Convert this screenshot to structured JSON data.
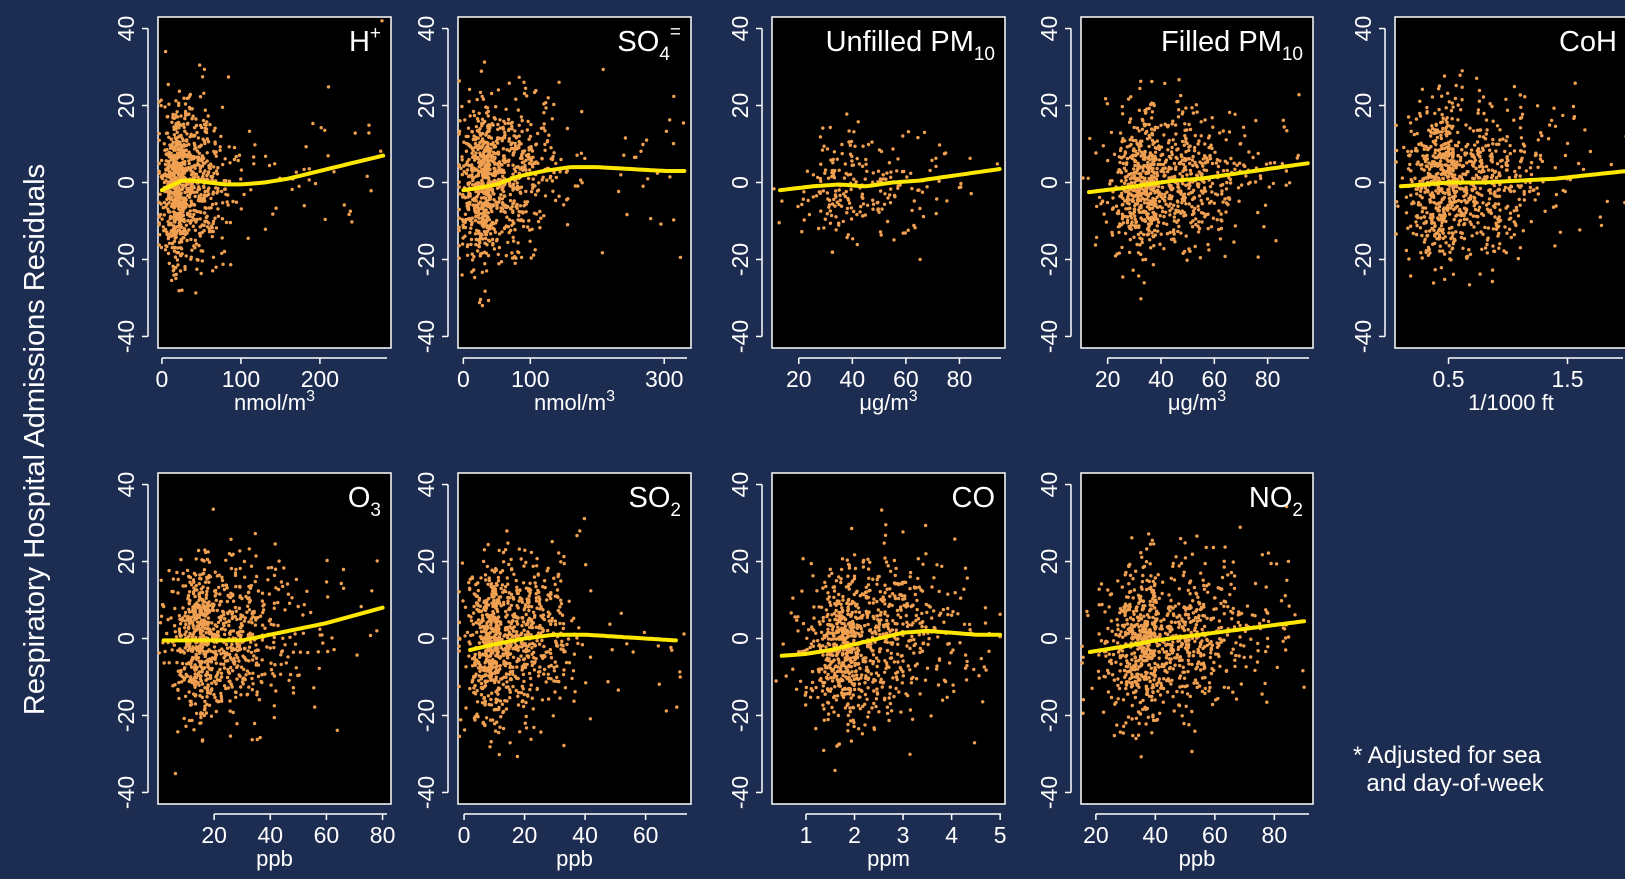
{
  "figure": {
    "ylabel": "Respiratory Hospital Admissions Residuals",
    "footnote_line1": "* Adjusted for sea",
    "footnote_line2": "  and day-of-week"
  },
  "colors": {
    "background": "#1d2d52",
    "panel": "#000000",
    "points": "#f0a050",
    "smooth": "#ffe800",
    "axis": "#ffffff"
  },
  "chart_data": [
    {
      "type": "scatter",
      "title_main": "H",
      "title_sup": "+",
      "title_sub": "",
      "xlabel_main": "nmol/m",
      "xlabel_sup": "3",
      "xlim": [
        -5,
        290
      ],
      "xticks": [
        0,
        100,
        200
      ],
      "xtick_labels": [
        "0",
        "100",
        "200"
      ],
      "ylim": [
        -43,
        43
      ],
      "yticks": [
        -40,
        -20,
        0,
        20,
        40
      ],
      "ytick_labels": [
        "-40",
        "-20",
        "0",
        "20",
        "40"
      ],
      "scatter": {
        "x_center": 25,
        "x_spread": 20,
        "x_max": 285,
        "y_spread": 10,
        "n": 950,
        "seed": 11
      },
      "smooth": {
        "x": [
          0,
          10,
          25,
          40,
          60,
          80,
          100,
          130,
          160,
          200,
          240,
          280
        ],
        "y": [
          -2,
          -1,
          0.5,
          0.5,
          0,
          -0.5,
          -0.5,
          0,
          1,
          3,
          5,
          7
        ]
      }
    },
    {
      "type": "scatter",
      "title_main": "SO",
      "title_sup": "=",
      "title_sub": "4",
      "xlabel_main": "nmol/m",
      "xlabel_sup": "3",
      "xlim": [
        -8,
        340
      ],
      "xticks": [
        0,
        100,
        300
      ],
      "xtick_labels": [
        "0",
        "100",
        "300"
      ],
      "ylim": [
        -43,
        43
      ],
      "yticks": [
        -40,
        -20,
        0,
        20,
        40
      ],
      "ytick_labels": [
        "-40",
        "-20",
        "0",
        "20",
        "40"
      ],
      "scatter": {
        "x_center": 40,
        "x_spread": 35,
        "x_max": 330,
        "y_spread": 10,
        "n": 950,
        "seed": 23
      },
      "smooth": {
        "x": [
          0,
          20,
          50,
          80,
          120,
          160,
          200,
          250,
          300,
          330
        ],
        "y": [
          -2,
          -1.5,
          -0.5,
          1.5,
          3,
          4,
          4,
          3.5,
          3,
          3
        ]
      }
    },
    {
      "type": "scatter",
      "title_main": "Unfilled PM",
      "title_sup": "",
      "title_sub": "10",
      "xlabel_main": "μg/m",
      "xlabel_sup": "3",
      "xlim": [
        10,
        97
      ],
      "xticks": [
        20,
        40,
        60,
        80
      ],
      "xtick_labels": [
        "20",
        "40",
        "60",
        "80"
      ],
      "ylim": [
        -43,
        43
      ],
      "yticks": [
        -40,
        -20,
        0,
        20,
        40
      ],
      "ytick_labels": [
        "-40",
        "-20",
        "0",
        "20",
        "40"
      ],
      "scatter": {
        "x_center": 40,
        "x_spread": 15,
        "x_max": 95,
        "y_spread": 7,
        "n": 230,
        "seed": 37
      },
      "smooth": {
        "x": [
          13,
          25,
          35,
          45,
          55,
          65,
          75,
          85,
          95
        ],
        "y": [
          -2,
          -1,
          -0.5,
          -1,
          0,
          0.5,
          1.5,
          2.5,
          3.5
        ]
      }
    },
    {
      "type": "scatter",
      "title_main": "Filled PM",
      "title_sup": "",
      "title_sub": "10",
      "xlabel_main": "μg/m",
      "xlabel_sup": "3",
      "xlim": [
        10,
        97
      ],
      "xticks": [
        20,
        40,
        60,
        80
      ],
      "xtick_labels": [
        "20",
        "40",
        "60",
        "80"
      ],
      "ylim": [
        -43,
        43
      ],
      "yticks": [
        -40,
        -20,
        0,
        20,
        40
      ],
      "ytick_labels": [
        "-40",
        "-20",
        "0",
        "20",
        "40"
      ],
      "scatter": {
        "x_center": 38,
        "x_spread": 13,
        "x_max": 95,
        "y_spread": 9,
        "n": 950,
        "seed": 41
      },
      "smooth": {
        "x": [
          13,
          25,
          35,
          45,
          55,
          65,
          75,
          85,
          95
        ],
        "y": [
          -2.5,
          -1.5,
          -0.5,
          0.5,
          1,
          2,
          3,
          4,
          5
        ]
      }
    },
    {
      "type": "scatter",
      "title_main": "CoH",
      "title_sup": "",
      "title_sub": "",
      "xlabel_main": "1/1000 ft",
      "xlabel_sup": "",
      "xlim": [
        0.05,
        2.0
      ],
      "xticks": [
        0.5,
        1.5
      ],
      "xtick_labels": [
        "0.5",
        "1.5"
      ],
      "ylim": [
        -43,
        43
      ],
      "yticks": [
        -40,
        -20,
        0,
        20,
        40
      ],
      "ytick_labels": [
        "-40",
        "-20",
        "0",
        "20",
        "40"
      ],
      "scatter": {
        "x_center": 0.55,
        "x_spread": 0.32,
        "x_max": 2.0,
        "y_spread": 10,
        "n": 950,
        "seed": 53
      },
      "smooth": {
        "x": [
          0.1,
          0.3,
          0.5,
          0.8,
          1.1,
          1.4,
          1.7,
          2.0
        ],
        "y": [
          -1,
          -0.5,
          0,
          0,
          0.5,
          1,
          2,
          3
        ]
      }
    },
    {
      "type": "scatter",
      "title_main": "O",
      "title_sup": "",
      "title_sub": "3",
      "xlabel_main": "ppb",
      "xlabel_sup": "",
      "xlim": [
        0,
        83
      ],
      "xticks": [
        20,
        40,
        60,
        80
      ],
      "xtick_labels": [
        "20",
        "40",
        "60",
        "80"
      ],
      "ylim": [
        -43,
        43
      ],
      "yticks": [
        -40,
        -20,
        0,
        20,
        40
      ],
      "ytick_labels": [
        "-40",
        "-20",
        "0",
        "20",
        "40"
      ],
      "scatter": {
        "x_center": 18,
        "x_spread": 10,
        "x_max": 81,
        "y_spread": 10,
        "n": 950,
        "seed": 67
      },
      "smooth": {
        "x": [
          2,
          10,
          20,
          30,
          40,
          50,
          60,
          70,
          80
        ],
        "y": [
          -0.5,
          -0.5,
          -0.5,
          -0.5,
          1,
          2.5,
          4,
          6,
          8
        ]
      }
    },
    {
      "type": "scatter",
      "title_main": "SO",
      "title_sup": "",
      "title_sub": "2",
      "xlabel_main": "ppb",
      "xlabel_sup": "",
      "xlim": [
        -2,
        75
      ],
      "xticks": [
        0,
        20,
        40,
        60
      ],
      "xtick_labels": [
        "0",
        "20",
        "40",
        "60"
      ],
      "ylim": [
        -43,
        43
      ],
      "yticks": [
        -40,
        -20,
        0,
        20,
        40
      ],
      "ytick_labels": [
        "-40",
        "-20",
        "0",
        "20",
        "40"
      ],
      "scatter": {
        "x_center": 12,
        "x_spread": 9,
        "x_max": 73,
        "y_spread": 10,
        "n": 950,
        "seed": 79
      },
      "smooth": {
        "x": [
          2,
          10,
          20,
          30,
          40,
          50,
          60,
          70
        ],
        "y": [
          -3,
          -1.5,
          0,
          1,
          1,
          0.5,
          0,
          -0.5
        ]
      }
    },
    {
      "type": "scatter",
      "title_main": "CO",
      "title_sup": "",
      "title_sub": "",
      "xlabel_main": "ppm",
      "xlabel_sup": "",
      "xlim": [
        0.3,
        5.1
      ],
      "xticks": [
        1,
        2,
        3,
        4,
        5
      ],
      "xtick_labels": [
        "1",
        "2",
        "3",
        "4",
        "5"
      ],
      "ylim": [
        -43,
        43
      ],
      "yticks": [
        -40,
        -20,
        0,
        20,
        40
      ],
      "ytick_labels": [
        "-40",
        "-20",
        "0",
        "20",
        "40"
      ],
      "scatter": {
        "x_center": 2.0,
        "x_spread": 0.7,
        "x_max": 5.0,
        "y_spread": 10,
        "n": 950,
        "seed": 83
      },
      "smooth": {
        "x": [
          0.5,
          1,
          1.5,
          2,
          2.5,
          3,
          3.5,
          4,
          4.5,
          5
        ],
        "y": [
          -4.5,
          -4,
          -3,
          -1.5,
          0,
          1.5,
          2,
          1.5,
          1,
          1
        ]
      }
    },
    {
      "type": "scatter",
      "title_main": "NO",
      "title_sup": "",
      "title_sub": "2",
      "xlabel_main": "ppb",
      "xlabel_sup": "",
      "xlim": [
        15,
        93
      ],
      "xticks": [
        20,
        40,
        60,
        80
      ],
      "xtick_labels": [
        "20",
        "40",
        "60",
        "80"
      ],
      "ylim": [
        -43,
        43
      ],
      "yticks": [
        -40,
        -20,
        0,
        20,
        40
      ],
      "ytick_labels": [
        "-40",
        "-20",
        "0",
        "20",
        "40"
      ],
      "scatter": {
        "x_center": 40,
        "x_spread": 13,
        "x_max": 90,
        "y_spread": 10,
        "n": 950,
        "seed": 97
      },
      "smooth": {
        "x": [
          18,
          30,
          40,
          50,
          60,
          70,
          80,
          90
        ],
        "y": [
          -3.5,
          -2,
          -0.5,
          0.5,
          1.5,
          2.5,
          3.5,
          4.5
        ]
      }
    }
  ]
}
